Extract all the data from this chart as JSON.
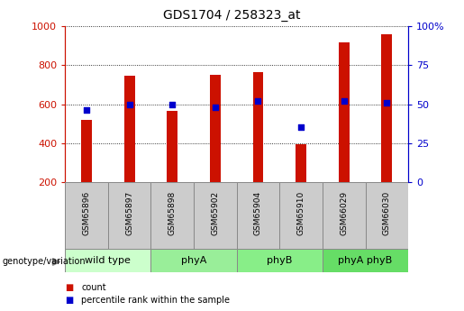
{
  "title": "GDS1704 / 258323_at",
  "samples": [
    "GSM65896",
    "GSM65897",
    "GSM65898",
    "GSM65902",
    "GSM65904",
    "GSM65910",
    "GSM66029",
    "GSM66030"
  ],
  "bar_values": [
    520,
    745,
    565,
    750,
    765,
    395,
    920,
    960
  ],
  "percentile_values": [
    46,
    50,
    50,
    48,
    52,
    35,
    52,
    51
  ],
  "bar_bottom": 200,
  "ylim": [
    200,
    1000
  ],
  "ylim_right": [
    0,
    100
  ],
  "yticks_left": [
    200,
    400,
    600,
    800,
    1000
  ],
  "yticks_right": [
    0,
    25,
    50,
    75,
    100
  ],
  "bar_color": "#cc1100",
  "dot_color": "#0000cc",
  "groups": [
    {
      "label": "wild type",
      "start": 0,
      "end": 2,
      "color": "#ccffcc"
    },
    {
      "label": "phyA",
      "start": 2,
      "end": 4,
      "color": "#99ee99"
    },
    {
      "label": "phyB",
      "start": 4,
      "end": 6,
      "color": "#88ee88"
    },
    {
      "label": "phyA phyB",
      "start": 6,
      "end": 8,
      "color": "#66dd66"
    }
  ],
  "legend_count_color": "#cc1100",
  "legend_percentile_color": "#0000cc",
  "bar_width": 0.25,
  "title_fontsize": 10
}
